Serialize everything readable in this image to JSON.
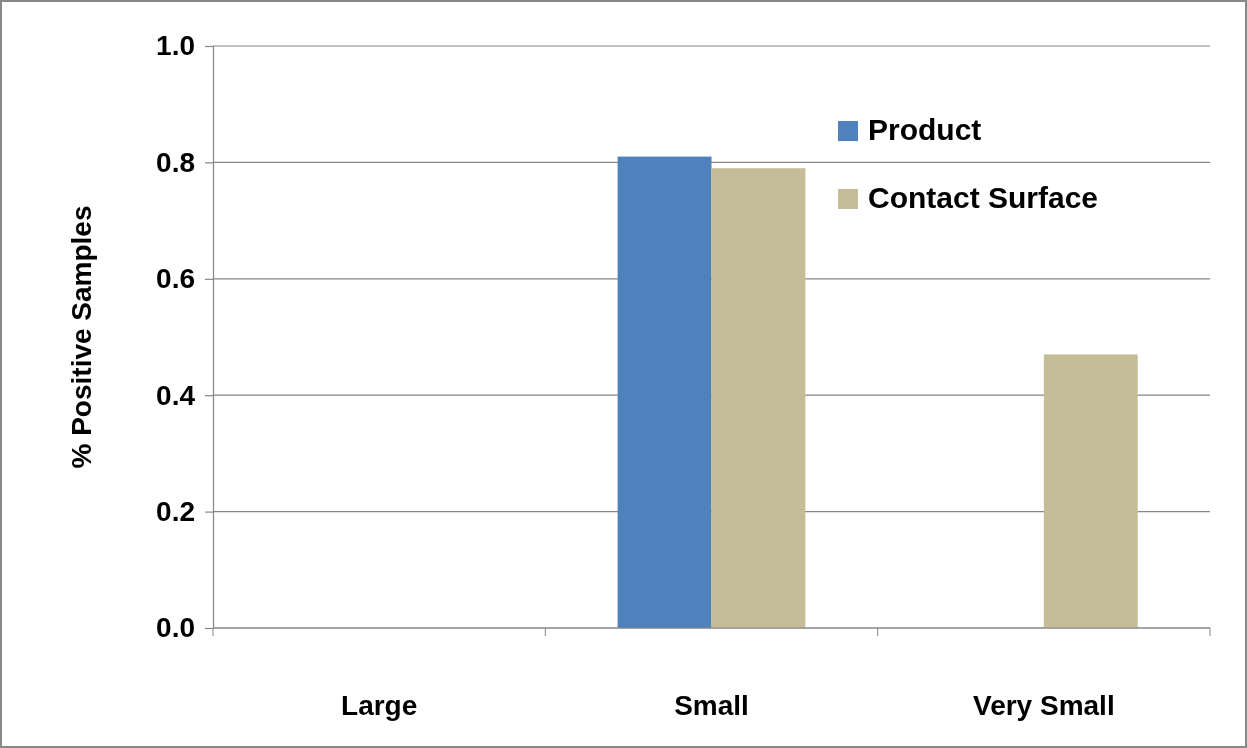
{
  "chart_data": {
    "type": "bar",
    "ylabel": "% Positive Samples",
    "categories": [
      "Large",
      "Small",
      "Very Small"
    ],
    "series": [
      {
        "name": "Product",
        "color": "#4f81bd",
        "values": [
          0,
          0.81,
          0
        ]
      },
      {
        "name": "Contact Surface",
        "color": "#c4bd97",
        "values": [
          0,
          0.79,
          0.47
        ]
      }
    ],
    "ylim": [
      0,
      1
    ],
    "yticks": [
      {
        "value": 0,
        "label": "0.0"
      },
      {
        "value": 0.2,
        "label": "0.2"
      },
      {
        "value": 0.4,
        "label": "0.4"
      },
      {
        "value": 0.6,
        "label": "0.6"
      },
      {
        "value": 0.8,
        "label": "0.8"
      },
      {
        "value": 1,
        "label": "1.0"
      }
    ],
    "grid": "y",
    "legend": "top right"
  }
}
